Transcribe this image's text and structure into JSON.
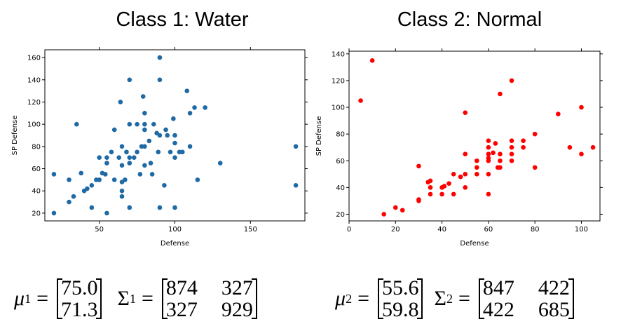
{
  "titles": {
    "class1": "Class 1: Water",
    "class2": "Class 2: Normal"
  },
  "stats": {
    "class1": {
      "mu_symbol": "μ",
      "mu_sup": "1",
      "mu": [
        "75.0",
        "71.3"
      ],
      "sigma_symbol": "Σ",
      "sigma_sup": "1",
      "sigma": [
        [
          "874",
          "327"
        ],
        [
          "327",
          "929"
        ]
      ]
    },
    "class2": {
      "mu_symbol": "μ",
      "mu_sup": "2",
      "mu": [
        "55.6",
        "59.8"
      ],
      "sigma_symbol": "Σ",
      "sigma_sup": "2",
      "sigma": [
        [
          "847",
          "422"
        ],
        [
          "422",
          "685"
        ]
      ]
    },
    "equals": "="
  },
  "chart_data": [
    {
      "type": "scatter",
      "title": "Class 1: Water",
      "xlabel": "Defense",
      "ylabel": "SP Defense",
      "xlim": [
        14,
        186
      ],
      "ylim": [
        13,
        167
      ],
      "xticks": [
        50,
        100,
        150
      ],
      "yticks": [
        20,
        40,
        60,
        80,
        100,
        120,
        140,
        160
      ],
      "grid": false,
      "color": "#1f6aa5",
      "points": [
        [
          20,
          20
        ],
        [
          20,
          55
        ],
        [
          30,
          50
        ],
        [
          30,
          30
        ],
        [
          33,
          35
        ],
        [
          35,
          100
        ],
        [
          38,
          56
        ],
        [
          40,
          40
        ],
        [
          42,
          42
        ],
        [
          45,
          45
        ],
        [
          45,
          25
        ],
        [
          48,
          50
        ],
        [
          50,
          50
        ],
        [
          50,
          70
        ],
        [
          52,
          56
        ],
        [
          54,
          55
        ],
        [
          55,
          20
        ],
        [
          55,
          65
        ],
        [
          55,
          70
        ],
        [
          58,
          75
        ],
        [
          60,
          95
        ],
        [
          60,
          50
        ],
        [
          63,
          70
        ],
        [
          64,
          120
        ],
        [
          65,
          80
        ],
        [
          65,
          63
        ],
        [
          65,
          48
        ],
        [
          65,
          40
        ],
        [
          65,
          35
        ],
        [
          67,
          50
        ],
        [
          68,
          75
        ],
        [
          70,
          140
        ],
        [
          70,
          100
        ],
        [
          70,
          70
        ],
        [
          70,
          65
        ],
        [
          70,
          25
        ],
        [
          73,
          70
        ],
        [
          75,
          100
        ],
        [
          75,
          75
        ],
        [
          77,
          55
        ],
        [
          78,
          80
        ],
        [
          79,
          125
        ],
        [
          80,
          95
        ],
        [
          80,
          110
        ],
        [
          80,
          100
        ],
        [
          80,
          80
        ],
        [
          80,
          63
        ],
        [
          83,
          85
        ],
        [
          84,
          65
        ],
        [
          85,
          55
        ],
        [
          86,
          100
        ],
        [
          88,
          92
        ],
        [
          89,
          75
        ],
        [
          90,
          160
        ],
        [
          90,
          140
        ],
        [
          90,
          90
        ],
        [
          90,
          25
        ],
        [
          93,
          45
        ],
        [
          94,
          95
        ],
        [
          95,
          90
        ],
        [
          97,
          75
        ],
        [
          99,
          105
        ],
        [
          100,
          90
        ],
        [
          100,
          83
        ],
        [
          100,
          70
        ],
        [
          100,
          25
        ],
        [
          103,
          75
        ],
        [
          105,
          75
        ],
        [
          108,
          130
        ],
        [
          110,
          110
        ],
        [
          110,
          80
        ],
        [
          113,
          115
        ],
        [
          115,
          50
        ],
        [
          120,
          115
        ],
        [
          130,
          65
        ],
        [
          180,
          80
        ],
        [
          180,
          45
        ]
      ]
    },
    {
      "type": "scatter",
      "title": "Class 2: Normal",
      "xlabel": "Defense",
      "ylabel": "SP Defense",
      "xlim": [
        0,
        108
      ],
      "ylim": [
        15,
        142
      ],
      "xticks": [
        0,
        20,
        40,
        60,
        80,
        100
      ],
      "yticks": [
        20,
        40,
        60,
        80,
        100,
        120,
        140
      ],
      "grid": false,
      "color": "#ff0000",
      "points": [
        [
          5,
          105
        ],
        [
          10,
          135
        ],
        [
          15,
          20
        ],
        [
          20,
          25
        ],
        [
          23,
          23
        ],
        [
          30,
          56
        ],
        [
          30,
          30
        ],
        [
          30,
          31
        ],
        [
          34,
          44
        ],
        [
          35,
          40
        ],
        [
          35,
          35
        ],
        [
          35,
          45
        ],
        [
          40,
          40
        ],
        [
          40,
          35
        ],
        [
          41,
          41
        ],
        [
          43,
          43
        ],
        [
          45,
          50
        ],
        [
          45,
          35
        ],
        [
          48,
          48
        ],
        [
          50,
          96
        ],
        [
          50,
          65
        ],
        [
          50,
          50
        ],
        [
          50,
          40
        ],
        [
          55,
          60
        ],
        [
          55,
          55
        ],
        [
          55,
          50
        ],
        [
          60,
          75
        ],
        [
          60,
          70
        ],
        [
          60,
          65
        ],
        [
          60,
          62
        ],
        [
          60,
          60
        ],
        [
          60,
          50
        ],
        [
          60,
          35
        ],
        [
          62,
          66
        ],
        [
          63,
          73
        ],
        [
          64,
          55
        ],
        [
          65,
          110
        ],
        [
          65,
          65
        ],
        [
          65,
          60
        ],
        [
          65,
          55
        ],
        [
          70,
          120
        ],
        [
          70,
          75
        ],
        [
          70,
          70
        ],
        [
          70,
          65
        ],
        [
          70,
          60
        ],
        [
          75,
          75
        ],
        [
          75,
          70
        ],
        [
          80,
          80
        ],
        [
          80,
          55
        ],
        [
          90,
          95
        ],
        [
          95,
          70
        ],
        [
          100,
          100
        ],
        [
          100,
          65
        ],
        [
          105,
          70
        ]
      ]
    }
  ]
}
